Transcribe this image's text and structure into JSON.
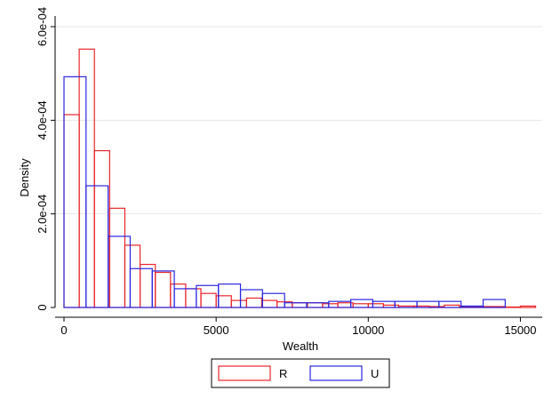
{
  "chart_data": {
    "type": "histogram",
    "xlabel": "Wealth",
    "ylabel": "Density",
    "xlim": [
      -500,
      15600
    ],
    "ylim": [
      0,
      0.00062
    ],
    "xticks": [
      0,
      5000,
      10000,
      15000
    ],
    "xtick_labels": [
      "0",
      "5000",
      "10000",
      "15000"
    ],
    "yticks": [
      0,
      0.0002,
      0.0004,
      0.0006
    ],
    "ytick_labels": [
      "0",
      "2.0e-04",
      "4.0e-04",
      "6.0e-04"
    ],
    "grid": true,
    "legend_position": "bottom",
    "series": [
      {
        "name": "R",
        "color": "#e8262b",
        "bin_width": 500,
        "bins": [
          {
            "x0": 0,
            "value": 0.000412
          },
          {
            "x0": 500,
            "value": 0.000552
          },
          {
            "x0": 1000,
            "value": 0.000335
          },
          {
            "x0": 1500,
            "value": 0.000212
          },
          {
            "x0": 2000,
            "value": 0.000133
          },
          {
            "x0": 2500,
            "value": 9.2e-05
          },
          {
            "x0": 3000,
            "value": 7.5e-05
          },
          {
            "x0": 3500,
            "value": 5e-05
          },
          {
            "x0": 4000,
            "value": 4e-05
          },
          {
            "x0": 4500,
            "value": 3e-05
          },
          {
            "x0": 5000,
            "value": 2.5e-05
          },
          {
            "x0": 5500,
            "value": 1.5e-05
          },
          {
            "x0": 6000,
            "value": 2e-05
          },
          {
            "x0": 6500,
            "value": 1.5e-05
          },
          {
            "x0": 7000,
            "value": 1.2e-05
          },
          {
            "x0": 7500,
            "value": 1e-05
          },
          {
            "x0": 8000,
            "value": 1e-05
          },
          {
            "x0": 8500,
            "value": 8e-06
          },
          {
            "x0": 9000,
            "value": 1e-05
          },
          {
            "x0": 9500,
            "value": 8e-06
          },
          {
            "x0": 10000,
            "value": 8e-06
          },
          {
            "x0": 10500,
            "value": 5e-06
          },
          {
            "x0": 11000,
            "value": 3e-06
          },
          {
            "x0": 11500,
            "value": 3e-06
          },
          {
            "x0": 12000,
            "value": 2e-06
          },
          {
            "x0": 12500,
            "value": 5e-06
          },
          {
            "x0": 13000,
            "value": 2e-06
          },
          {
            "x0": 13500,
            "value": 2e-06
          },
          {
            "x0": 14000,
            "value": 2e-06
          },
          {
            "x0": 14500,
            "value": 1e-06
          },
          {
            "x0": 15000,
            "value": 3e-06
          }
        ]
      },
      {
        "name": "U",
        "color": "#2b27e0",
        "bin_width": 725,
        "bins": [
          {
            "x0": 0,
            "value": 0.000493
          },
          {
            "x0": 725,
            "value": 0.00026
          },
          {
            "x0": 1450,
            "value": 0.000152
          },
          {
            "x0": 2175,
            "value": 8.3e-05
          },
          {
            "x0": 2900,
            "value": 7.8e-05
          },
          {
            "x0": 3625,
            "value": 4e-05
          },
          {
            "x0": 4350,
            "value": 4.7e-05
          },
          {
            "x0": 5075,
            "value": 5e-05
          },
          {
            "x0": 5800,
            "value": 3.8e-05
          },
          {
            "x0": 6525,
            "value": 3e-05
          },
          {
            "x0": 7250,
            "value": 1e-05
          },
          {
            "x0": 7975,
            "value": 1e-05
          },
          {
            "x0": 8700,
            "value": 1.3e-05
          },
          {
            "x0": 9425,
            "value": 1.7e-05
          },
          {
            "x0": 10150,
            "value": 1.3e-05
          },
          {
            "x0": 10875,
            "value": 1.3e-05
          },
          {
            "x0": 11600,
            "value": 1.3e-05
          },
          {
            "x0": 12325,
            "value": 1.3e-05
          },
          {
            "x0": 13050,
            "value": 3e-06
          },
          {
            "x0": 13775,
            "value": 1.7e-05
          }
        ]
      }
    ]
  }
}
